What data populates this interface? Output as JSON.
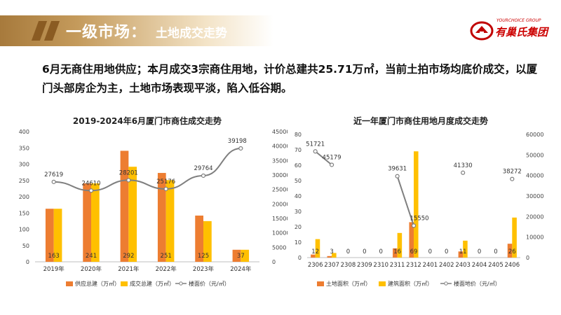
{
  "header": {
    "title": "一级市场：",
    "subtitle": "土地成交走势"
  },
  "logo": {
    "en": "YOURCHOICE GROUP",
    "cn": "有巢氏集团"
  },
  "summary": "6月无商住用地供应；本月成交3宗商住用地，计价总建共25.71万㎡，当前土拍市场均底价成交，以厦门头部房企为主，土地市场表现平淡，陷入低谷期。",
  "colors": {
    "orange": "#ed7d31",
    "yellow": "#ffc000",
    "line": "#7f7f7f",
    "accent": "#c00000"
  },
  "chart_data": [
    {
      "type": "bar",
      "title": "2019-2024年6月厦门市商住成交走势",
      "categories": [
        "2019年",
        "2020年",
        "2021年",
        "2022年",
        "2023年",
        "2024年"
      ],
      "series": [
        {
          "name": "供应总建（万㎡）",
          "type": "bar",
          "axis": "left",
          "values": [
            163,
            241,
            341,
            273,
            142,
            37
          ]
        },
        {
          "name": "成交总建（万㎡）",
          "type": "bar",
          "axis": "left",
          "values": [
            163,
            241,
            292,
            251,
            125,
            37
          ]
        },
        {
          "name": "楼面价（元/㎡）",
          "type": "line",
          "axis": "right",
          "values": [
            27619,
            24610,
            28201,
            25176,
            29764,
            39198
          ]
        }
      ],
      "data_labels": [
        "163",
        "241",
        "292",
        "251",
        "125",
        "37"
      ],
      "line_labels": [
        "27619",
        "24610",
        "28201",
        "25176",
        "29764",
        "39198"
      ],
      "ylim_left": [
        0,
        400
      ],
      "yticks_left": [
        "0",
        "50",
        "100",
        "150",
        "200",
        "250",
        "300",
        "350",
        "400"
      ],
      "ylim_right": [
        0,
        45000
      ],
      "yticks_right": [
        "0",
        "5000",
        "10000",
        "15000",
        "20000",
        "25000",
        "30000",
        "35000",
        "40000",
        "45000"
      ],
      "legend": "bottom",
      "grid": false
    },
    {
      "type": "bar",
      "title": "近一年厦门市商住用地月度成交走势",
      "categories": [
        "2306",
        "2307",
        "2308",
        "2309",
        "2310",
        "2311",
        "2312",
        "2401",
        "2402",
        "2403",
        "2404",
        "2405",
        "2406"
      ],
      "series": [
        {
          "name": "土地面积（万㎡）",
          "type": "bar",
          "axis": "left",
          "values": [
            2,
            1,
            0,
            0,
            0,
            6,
            23,
            0,
            0,
            4,
            0,
            0,
            9
          ]
        },
        {
          "name": "建筑面积（万㎡）",
          "type": "bar",
          "axis": "left",
          "values": [
            12,
            3,
            0,
            0,
            0,
            16,
            69,
            0,
            0,
            11,
            0,
            0,
            26
          ]
        },
        {
          "name": "楼面地价（元/㎡）",
          "type": "line",
          "axis": "right",
          "values": [
            51721,
            45179,
            null,
            null,
            null,
            39631,
            15550,
            null,
            null,
            41330,
            null,
            null,
            38272
          ]
        }
      ],
      "data_labels": [
        "12",
        "3",
        "0",
        "0",
        "0",
        "16",
        "69",
        "0",
        "0",
        "11",
        "0",
        "0",
        "26"
      ],
      "line_labels": [
        "51721",
        "45179",
        "",
        "",
        "",
        "39631",
        "15550",
        "",
        "",
        "41330",
        "",
        "",
        "38272"
      ],
      "ylim_left": [
        0,
        80
      ],
      "yticks_left": [
        "0",
        "10",
        "20",
        "30",
        "40",
        "50",
        "60",
        "70",
        "80"
      ],
      "ylim_right": [
        0,
        60000
      ],
      "yticks_right": [
        "0",
        "10000",
        "20000",
        "30000",
        "40000",
        "50000",
        "60000"
      ],
      "legend": "bottom",
      "grid": false
    }
  ]
}
